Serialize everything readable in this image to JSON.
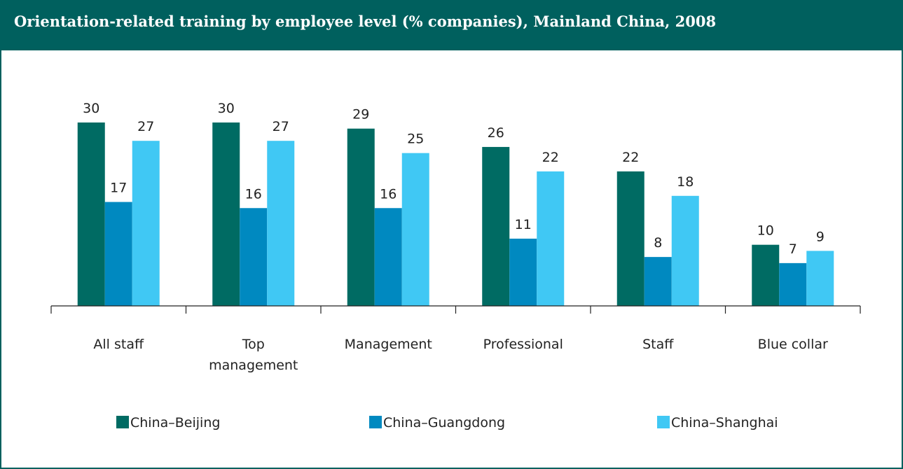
{
  "chart_data": {
    "type": "bar",
    "title": "Orientation-related training by employee level (% companies), Mainland China, 2008",
    "categories": [
      "All staff",
      "Top management",
      "Management",
      "Professional",
      "Staff",
      "Blue collar"
    ],
    "series": [
      {
        "name": "China–Beijing",
        "color": "#006b63",
        "values": [
          30,
          30,
          29,
          26,
          22,
          10
        ]
      },
      {
        "name": "China–Guangdong",
        "color": "#0089c0",
        "values": [
          17,
          16,
          16,
          11,
          8,
          7
        ]
      },
      {
        "name": "China–Shanghai",
        "color": "#40c8f4",
        "values": [
          27,
          27,
          25,
          22,
          18,
          9
        ]
      }
    ],
    "ylim": [
      0,
      30
    ]
  }
}
